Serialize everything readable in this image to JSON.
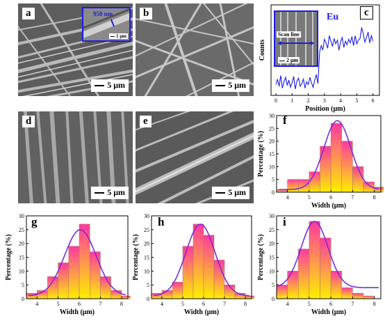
{
  "panels": {
    "a": {
      "label": "a",
      "scale": "5 μm",
      "inset_text": "950 nm",
      "inset_scale": "1 μm"
    },
    "b": {
      "label": "b",
      "scale": "5 μm"
    },
    "c": {
      "label": "c",
      "element": "Eu",
      "inset_text": "Scan line",
      "inset_scale": "2 μm"
    },
    "d": {
      "label": "d",
      "scale": "5 μm"
    },
    "e": {
      "label": "e",
      "scale": "5 μm"
    },
    "f": {
      "label": "f"
    },
    "g": {
      "label": "g"
    },
    "h": {
      "label": "h"
    },
    "i": {
      "label": "i"
    }
  },
  "colors": {
    "bar_top": "#ff3aa0",
    "bar_bottom": "#ffef00",
    "fit_curve": "#7a2bd6",
    "linescan": "#1c1ce0",
    "inset_border": "#1c1ce0"
  },
  "chart_data": [
    {
      "id": "c",
      "type": "line",
      "xlabel": "Position (μm)",
      "ylabel": "Counts",
      "xlim": [
        -0.3,
        6.4
      ],
      "xticks": [
        "0",
        "1",
        "2",
        "3",
        "4",
        "5",
        "6"
      ],
      "series": [
        {
          "name": "Eu",
          "x": [
            0.0,
            0.1,
            0.2,
            0.3,
            0.4,
            0.5,
            0.6,
            0.7,
            0.8,
            0.9,
            1.0,
            1.1,
            1.2,
            1.3,
            1.4,
            1.5,
            1.6,
            1.7,
            1.8,
            1.9,
            2.0,
            2.1,
            2.2,
            2.3,
            2.4,
            2.5,
            2.6,
            2.7,
            2.8,
            2.9,
            3.0,
            3.1,
            3.2,
            3.3,
            3.4,
            3.5,
            3.6,
            3.7,
            3.8,
            3.9,
            4.0,
            4.1,
            4.2,
            4.3,
            4.4,
            4.5,
            4.6,
            4.7,
            4.8,
            4.9,
            5.0,
            5.1,
            5.2,
            5.3,
            5.4,
            5.5,
            5.6,
            5.7,
            5.8,
            5.9,
            6.0
          ],
          "y": [
            12,
            18,
            10,
            22,
            8,
            15,
            20,
            11,
            17,
            9,
            14,
            21,
            7,
            16,
            19,
            10,
            13,
            18,
            8,
            15,
            12,
            20,
            14,
            9,
            17,
            23,
            13,
            48,
            55,
            50,
            62,
            58,
            52,
            66,
            60,
            54,
            63,
            57,
            61,
            50,
            59,
            64,
            53,
            60,
            56,
            62,
            58,
            65,
            55,
            66,
            57,
            61,
            63,
            75,
            68,
            59,
            64,
            70,
            58,
            66,
            60
          ]
        }
      ],
      "ylim": [
        0,
        100
      ]
    },
    {
      "id": "f",
      "type": "bar",
      "xlabel": "Width (μm)",
      "ylabel": "Percentage (%)",
      "xlim": [
        3.5,
        8.3
      ],
      "ylim": [
        0,
        30
      ],
      "xticks": [
        4,
        5,
        6,
        7,
        8
      ],
      "yticks": [
        0,
        5,
        10,
        15,
        20,
        25,
        30
      ],
      "bin_centers": [
        3.75,
        4.25,
        4.75,
        5.25,
        5.75,
        6.25,
        6.75,
        7.25,
        7.75,
        8.25
      ],
      "values": [
        1,
        5,
        5,
        8,
        18,
        27,
        20,
        10,
        4,
        2
      ],
      "fit": {
        "type": "gaussian",
        "mu": 6.3,
        "sigma": 0.62,
        "amplitude": 27,
        "baseline": 1
      }
    },
    {
      "id": "g",
      "type": "bar",
      "xlabel": "Width (μm)",
      "ylabel": "Percentage (%)",
      "xlim": [
        3.5,
        8.3
      ],
      "ylim": [
        0,
        30
      ],
      "xticks": [
        4,
        5,
        6,
        7,
        8
      ],
      "yticks": [
        0,
        5,
        10,
        15,
        20,
        25,
        30
      ],
      "bin_centers": [
        3.75,
        4.25,
        4.75,
        5.25,
        5.75,
        6.25,
        6.75,
        7.25,
        7.75,
        8.25
      ],
      "values": [
        2,
        3,
        8,
        13,
        19,
        27,
        17,
        8,
        3,
        1
      ],
      "fit": {
        "type": "gaussian",
        "mu": 6.05,
        "sigma": 0.75,
        "amplitude": 24,
        "baseline": 1
      }
    },
    {
      "id": "h",
      "type": "bar",
      "xlabel": "Width (μm)",
      "ylabel": "Percentage (%)",
      "xlim": [
        3.5,
        8.3
      ],
      "ylim": [
        0,
        30
      ],
      "xticks": [
        4,
        5,
        6,
        7,
        8
      ],
      "yticks": [
        0,
        5,
        10,
        15,
        20,
        25,
        30
      ],
      "bin_centers": [
        3.75,
        4.25,
        4.75,
        5.25,
        5.75,
        6.25,
        6.75,
        7.25,
        7.75,
        8.25
      ],
      "values": [
        2,
        3,
        6,
        19,
        27,
        23,
        14,
        5,
        2,
        1
      ],
      "fit": {
        "type": "gaussian",
        "mu": 5.85,
        "sigma": 0.7,
        "amplitude": 26,
        "baseline": 1
      }
    },
    {
      "id": "i",
      "type": "bar",
      "xlabel": "Width (μm)",
      "ylabel": "Percentage (%)",
      "xlim": [
        3.5,
        8.3
      ],
      "ylim": [
        0,
        30
      ],
      "xticks": [
        4,
        5,
        6,
        7,
        8
      ],
      "yticks": [
        0,
        5,
        10,
        15,
        20,
        25,
        30
      ],
      "bin_centers": [
        3.75,
        4.25,
        4.75,
        5.25,
        5.75,
        6.25,
        6.75,
        7.25,
        7.75
      ],
      "values": [
        5,
        10,
        18,
        28,
        22,
        10,
        4,
        2,
        1
      ],
      "fit": {
        "type": "gaussian",
        "mu": 5.25,
        "sigma": 0.62,
        "amplitude": 24,
        "baseline": 4
      }
    }
  ]
}
